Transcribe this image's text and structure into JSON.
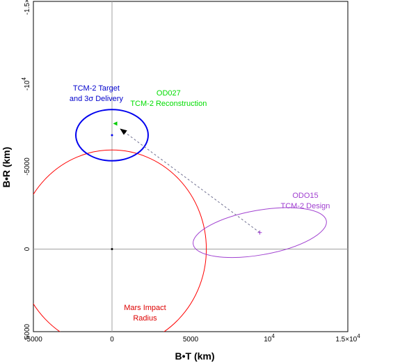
{
  "chart_data": {
    "type": "scatter",
    "xlabel": "B•T (km)",
    "ylabel": "B•R (km)",
    "xlim": [
      -5000,
      15000
    ],
    "ylim": [
      -15000,
      5000
    ],
    "y_axis_inverted": true,
    "grid_lines": {
      "x": [
        0
      ],
      "y": [
        0
      ]
    },
    "x_ticks": [
      {
        "value": -5000,
        "label": "-5000"
      },
      {
        "value": 0,
        "label": "0"
      },
      {
        "value": 5000,
        "label": "5000"
      },
      {
        "value": 10000,
        "label": "10",
        "exponent": "4"
      },
      {
        "value": 15000,
        "label": "1.5×10",
        "exponent": "4"
      }
    ],
    "y_ticks": [
      {
        "value": -15000,
        "label": "-1.5×10",
        "exponent": "4"
      },
      {
        "value": -10000,
        "label": "-10",
        "exponent": "4"
      },
      {
        "value": -5000,
        "label": "-5000"
      },
      {
        "value": 0,
        "label": "0"
      },
      {
        "value": 5000,
        "label": "5000"
      }
    ],
    "circles": [
      {
        "name": "mars-impact-radius",
        "cx": 0,
        "cy": 0,
        "r": 6000,
        "color": "#ff0000",
        "width": 1
      }
    ],
    "ellipses": [
      {
        "name": "tcm2-target-ellipse",
        "cx": 0,
        "cy": -6900,
        "rx": 2300,
        "ry": 1550,
        "rotation": 0,
        "color": "#0000ee",
        "width": 2
      },
      {
        "name": "od015-design-ellipse",
        "cx": 9400,
        "cy": -1000,
        "rx": 4300,
        "ry": 1350,
        "rotation": 10,
        "color": "#a040d0",
        "width": 1
      }
    ],
    "points": [
      {
        "name": "origin-point",
        "x": 0,
        "y": 0,
        "color": "#000000",
        "marker": "dot"
      },
      {
        "name": "tcm2-target-point",
        "x": 0,
        "y": -6900,
        "color": "#0000ee",
        "marker": "dot"
      },
      {
        "name": "od027-point",
        "x": 200,
        "y": -7600,
        "color": "#00cc00",
        "marker": "arrow-left"
      },
      {
        "name": "od015-point",
        "x": 9400,
        "y": -1000,
        "color": "#a040d0",
        "marker": "plus"
      }
    ],
    "trajectory": {
      "from": [
        9400,
        -1000
      ],
      "to": [
        500,
        -7300
      ],
      "color": "#707090",
      "dash": true
    },
    "annotations": [
      {
        "name": "tcm2-target-label",
        "lines": [
          "TCM-2 Target",
          "and 3σ Delivery"
        ],
        "color": "#0000cc",
        "x": -1000,
        "y": -9600,
        "anchor": "middle"
      },
      {
        "name": "od027-label",
        "lines": [
          "OD027",
          "TCM-2 Reconstruction"
        ],
        "color": "#00dd00",
        "x": 3600,
        "y": -9300,
        "anchor": "middle"
      },
      {
        "name": "od015-label",
        "lines": [
          "ODO15",
          "TCM-2 Design"
        ],
        "color": "#a040d0",
        "x": 12300,
        "y": -3100,
        "anchor": "middle"
      },
      {
        "name": "mars-impact-label",
        "lines": [
          "Mars Impact",
          "Radius"
        ],
        "color": "#dd0000",
        "x": 2100,
        "y": 3700,
        "anchor": "middle"
      }
    ]
  }
}
